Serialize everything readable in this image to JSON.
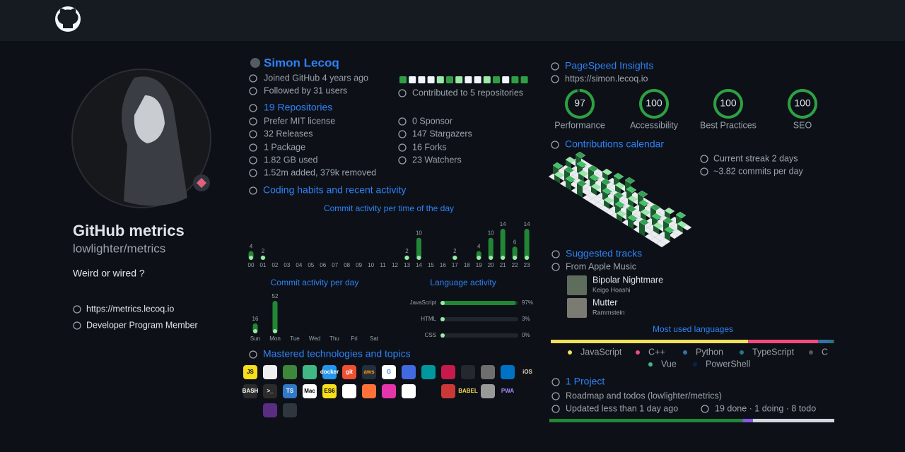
{
  "profile": {
    "name": "GitHub metrics",
    "login": "lowlighter/metrics",
    "bio": "Weird or wired ?",
    "website": "https://metrics.lecoq.io",
    "badge": "Developer Program Member"
  },
  "user": {
    "name": "Simon Lecoq",
    "joined": "Joined GitHub 4 years ago",
    "followers": "Followed by 31 users",
    "contributed": "Contributed to 5 repositories",
    "repositories": "19 Repositories",
    "license": "Prefer MIT license",
    "releases": "32 Releases",
    "packages": "1 Package",
    "disk": "1.82 GB used",
    "changes": "1.52m added, 379k removed",
    "sponsors": "0 Sponsor",
    "stargazers": "147 Stargazers",
    "forks": "16 Forks",
    "watchers": "23 Watchers"
  },
  "habits": {
    "title": "Coding habits and recent activity"
  },
  "topics": {
    "title": "Mastered technologies and topics",
    "icons": [
      "JS",
      null,
      null,
      null,
      "docker",
      "git",
      "aws",
      "G",
      null,
      null,
      null,
      null,
      null,
      null,
      "iOS",
      "BASH",
      ">_",
      "TS",
      "Mac",
      "ES6",
      null,
      null,
      null,
      null,
      null,
      null,
      "BABEL",
      null,
      "PWA",
      null,
      null,
      null,
      null
    ]
  },
  "calendar": {
    "title": "Contributions calendar",
    "streak": "Current streak 2 days",
    "average": "~3.82 commits per day"
  },
  "tracks": {
    "title": "Suggested tracks",
    "source": "From Apple Music",
    "items": [
      {
        "title": "Bipolar Nightmare",
        "artist": "Keigo Hoashi"
      },
      {
        "title": "Mutter",
        "artist": "Rammstein"
      }
    ]
  },
  "project": {
    "title": "1 Project",
    "name": "Roadmap and todos (lowlighter/metrics)",
    "updated": "Updated less than 1 day ago",
    "status": "19 done · 1 doing · 8 todo",
    "progress": [
      19,
      1,
      8
    ],
    "colors": [
      "#238636",
      "#8957e5",
      "#d0d7de"
    ]
  },
  "chart_data": [
    {
      "type": "bar",
      "title": "Commit activity per time of the day",
      "color": "#238636",
      "categories": [
        "00",
        "01",
        "02",
        "03",
        "04",
        "05",
        "06",
        "07",
        "08",
        "09",
        "10",
        "11",
        "12",
        "13",
        "14",
        "15",
        "16",
        "17",
        "18",
        "19",
        "20",
        "21",
        "22",
        "23"
      ],
      "values": [
        4,
        2,
        0,
        0,
        0,
        0,
        0,
        0,
        0,
        0,
        0,
        0,
        0,
        2,
        10,
        0,
        0,
        2,
        0,
        4,
        10,
        14,
        6,
        14
      ]
    },
    {
      "type": "bar",
      "title": "Commit activity per day",
      "color": "#238636",
      "categories": [
        "Sun",
        "Mon",
        "Tue",
        "Wed",
        "Thu",
        "Fri",
        "Sat"
      ],
      "values": [
        16,
        52,
        0,
        0,
        0,
        0,
        0
      ]
    },
    {
      "type": "hbar",
      "title": "Language activity",
      "color": "#238636",
      "categories": [
        "JavaScript",
        "HTML",
        "CSS"
      ],
      "values": [
        97,
        3,
        0
      ],
      "value_labels": [
        "97%",
        "3%",
        "0%"
      ]
    },
    {
      "type": "gauge",
      "title": "PageSpeed Insights",
      "subtitle": "https://simon.lecoq.io",
      "color": "#2ea043",
      "categories": [
        "Performance",
        "Accessibility",
        "Best Practices",
        "SEO"
      ],
      "values": [
        97,
        100,
        100,
        100
      ]
    },
    {
      "type": "stacked",
      "title": "Most used languages",
      "series": [
        {
          "name": "JavaScript",
          "color": "#f1e05a",
          "values": [
            69.6
          ]
        },
        {
          "name": "C++",
          "color": "#f34b7d",
          "values": [
            24.7
          ]
        },
        {
          "name": "Python",
          "color": "#3572a5",
          "values": [
            3.7
          ]
        },
        {
          "name": "TypeScript",
          "color": "#2b7489",
          "values": [
            1.5
          ]
        },
        {
          "name": "C",
          "color": "#555555",
          "values": [
            0.3
          ]
        },
        {
          "name": "Vue",
          "color": "#41b883",
          "values": [
            0.1
          ]
        },
        {
          "name": "PowerShell",
          "color": "#012456",
          "values": [
            0.1
          ]
        }
      ]
    }
  ]
}
